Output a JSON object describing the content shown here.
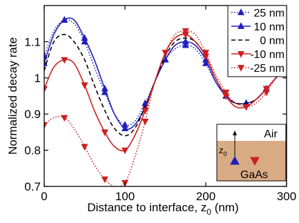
{
  "chart_data": {
    "type": "line",
    "xlabel": "Distance to interface, z",
    "xlabel_sub": "0",
    "xlabel_unit": " (nm)",
    "ylabel": "Normalized decay rate",
    "xlim": [
      0,
      300
    ],
    "ylim": [
      0.7,
      1.2
    ],
    "xticks": [
      0,
      100,
      200,
      300
    ],
    "yticks": [
      0.7,
      0.8,
      0.9,
      1.0,
      1.1
    ],
    "ytick_labels": [
      "0.7",
      "0.8",
      "0.9",
      "1",
      "1.1"
    ],
    "grid": false,
    "legend_position": "top-right",
    "series": [
      {
        "name": "25 nm",
        "color": "#1f1fbf",
        "line_style": "dotted",
        "marker": "triangle-up",
        "x": [
          0,
          12,
          25,
          37,
          50,
          62,
          75,
          87,
          100,
          112,
          125,
          137,
          150,
          162,
          175,
          187,
          200,
          212,
          225,
          237,
          250,
          262,
          275,
          287,
          300
        ],
        "y": [
          1.06,
          1.13,
          1.16,
          1.15,
          1.1,
          1.03,
          0.96,
          0.9,
          0.87,
          0.88,
          0.93,
          0.99,
          1.05,
          1.08,
          1.09,
          1.08,
          1.04,
          0.99,
          0.95,
          0.93,
          0.93,
          0.94,
          0.97,
          1.0,
          1.03
        ]
      },
      {
        "name": "10 nm",
        "color": "#1f1fbf",
        "line_style": "solid",
        "marker": "triangle-up",
        "x": [
          0,
          12,
          25,
          37,
          50,
          62,
          75,
          87,
          100,
          112,
          125,
          137,
          150,
          162,
          175,
          187,
          200,
          212,
          225,
          237,
          250,
          262,
          275,
          287,
          300
        ],
        "y": [
          1.04,
          1.12,
          1.16,
          1.16,
          1.11,
          1.05,
          0.97,
          0.9,
          0.86,
          0.87,
          0.92,
          0.99,
          1.05,
          1.09,
          1.1,
          1.09,
          1.05,
          0.99,
          0.95,
          0.93,
          0.93,
          0.94,
          0.97,
          1.0,
          1.03
        ]
      },
      {
        "name": "0 nm",
        "color": "#000000",
        "line_style": "dashed",
        "marker": "none",
        "x": [
          0,
          12,
          25,
          37,
          50,
          62,
          75,
          87,
          100,
          112,
          125,
          137,
          150,
          162,
          175,
          187,
          200,
          212,
          225,
          237,
          250,
          262,
          275,
          287,
          300
        ],
        "y": [
          1.02,
          1.1,
          1.12,
          1.1,
          1.05,
          0.98,
          0.91,
          0.86,
          0.84,
          0.86,
          0.92,
          0.99,
          1.06,
          1.1,
          1.11,
          1.1,
          1.06,
          1.0,
          0.95,
          0.93,
          0.93,
          0.94,
          0.97,
          1.0,
          1.03
        ]
      },
      {
        "name": "-10 nm",
        "color": "#cc1f1f",
        "line_style": "solid",
        "marker": "triangle-down",
        "x": [
          0,
          12,
          25,
          37,
          50,
          62,
          75,
          87,
          100,
          112,
          125,
          137,
          150,
          162,
          175,
          187,
          200,
          212,
          225,
          237,
          250,
          262,
          275,
          287,
          300
        ],
        "y": [
          0.97,
          1.03,
          1.05,
          1.04,
          0.98,
          0.91,
          0.85,
          0.81,
          0.8,
          0.84,
          0.91,
          0.99,
          1.07,
          1.11,
          1.12,
          1.1,
          1.06,
          1.0,
          0.95,
          0.92,
          0.92,
          0.94,
          0.97,
          1.0,
          1.03
        ]
      },
      {
        "name": "-25 nm",
        "color": "#cc1f1f",
        "line_style": "dotted",
        "marker": "triangle-down",
        "x": [
          0,
          12,
          25,
          37,
          50,
          62,
          75,
          87,
          100,
          112,
          125,
          137,
          150,
          162,
          175,
          187,
          200,
          212,
          225,
          237,
          250,
          262,
          275,
          287,
          300
        ],
        "y": [
          0.87,
          0.89,
          0.89,
          0.86,
          0.81,
          0.76,
          0.72,
          0.7,
          0.71,
          0.78,
          0.88,
          0.99,
          1.07,
          1.12,
          1.13,
          1.12,
          1.07,
          1.01,
          0.96,
          0.93,
          0.92,
          0.93,
          0.96,
          1.0,
          1.03
        ]
      }
    ],
    "inset": {
      "top_label": "Air",
      "bottom_label": "GaAs",
      "z_label": "z",
      "z_sub": "0",
      "air_color": "#ffffff",
      "gaas_color": "#d9ab85"
    }
  }
}
